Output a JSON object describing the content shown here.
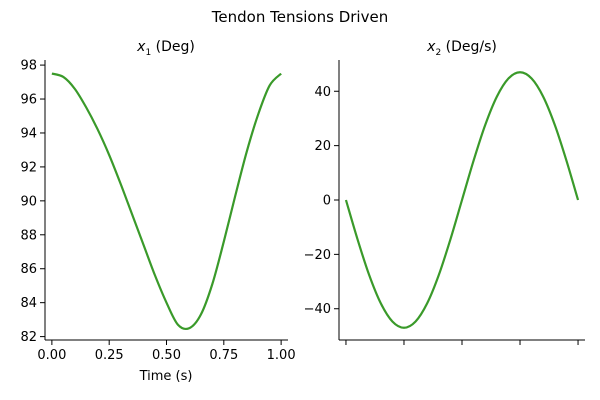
{
  "figure": {
    "suptitle": "Tendon Tensions Driven"
  },
  "chart_data": [
    {
      "type": "line",
      "title_main": "x",
      "title_sub": "1",
      "title_rest": " (Deg)",
      "xlabel": "Time (s)",
      "ylabel": "",
      "xlim": [
        -0.03,
        1.03
      ],
      "ylim": [
        81.8,
        98.3
      ],
      "xticks": [
        0.0,
        0.25,
        0.5,
        0.75,
        1.0
      ],
      "xtick_labels": [
        "0.00",
        "0.25",
        "0.50",
        "0.75",
        "1.00"
      ],
      "yticks": [
        82,
        84,
        86,
        88,
        90,
        92,
        94,
        96,
        98
      ],
      "ytick_labels": [
        "82",
        "84",
        "86",
        "88",
        "90",
        "92",
        "94",
        "96",
        "98"
      ],
      "grid": false,
      "series": [
        {
          "color": "#3a9a2a",
          "x": [
            0.0,
            0.05,
            0.1,
            0.15,
            0.2,
            0.25,
            0.3,
            0.35,
            0.4,
            0.45,
            0.5,
            0.55,
            0.6,
            0.65,
            0.7,
            0.75,
            0.8,
            0.85,
            0.9,
            0.95,
            1.0
          ],
          "y": [
            97.5,
            97.3,
            96.6,
            95.5,
            94.2,
            92.7,
            91.0,
            89.2,
            87.4,
            85.6,
            84.0,
            82.7,
            82.5,
            83.3,
            85.1,
            87.6,
            90.3,
            92.9,
            95.1,
            96.8,
            97.5
          ]
        }
      ]
    },
    {
      "type": "line",
      "title_main": "x",
      "title_sub": "2",
      "title_rest": " (Deg/s)",
      "xlabel": "",
      "ylabel": "",
      "xlim": [
        -0.03,
        1.03
      ],
      "ylim": [
        -51.5,
        51.5
      ],
      "xticks": [
        0.0,
        0.25,
        0.5,
        0.75,
        1.0
      ],
      "xtick_labels": [
        "",
        "",
        "",
        "",
        ""
      ],
      "yticks": [
        -40,
        -20,
        0,
        20,
        40
      ],
      "ytick_labels": [
        "−40",
        "−20",
        "0",
        "20",
        "40"
      ],
      "grid": false,
      "series": [
        {
          "color": "#3a9a2a",
          "x": [
            0.0,
            0.05,
            0.1,
            0.15,
            0.2,
            0.25,
            0.3,
            0.35,
            0.4,
            0.45,
            0.5,
            0.55,
            0.6,
            0.65,
            0.7,
            0.75,
            0.8,
            0.85,
            0.9,
            0.95,
            1.0
          ],
          "y": [
            0,
            -14.5,
            -27.6,
            -38.0,
            -44.7,
            -47.0,
            -44.7,
            -38.0,
            -27.6,
            -14.5,
            0,
            14.5,
            27.6,
            38.0,
            44.7,
            47.0,
            44.7,
            38.0,
            27.6,
            14.5,
            0
          ]
        }
      ]
    }
  ]
}
